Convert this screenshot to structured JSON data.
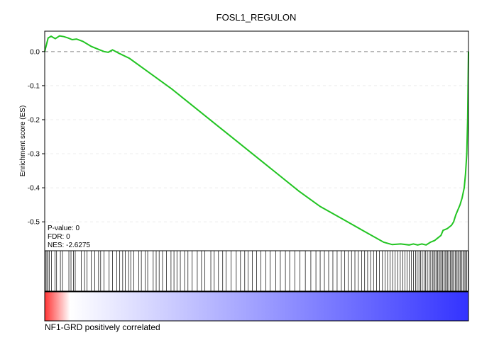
{
  "chart_data": {
    "type": "line",
    "title": "FOSL1_REGULON",
    "ylabel": "Enrichment score (ES)",
    "ylim": [
      -0.585,
      0.06
    ],
    "yticks": [
      0.0,
      -0.1,
      -0.2,
      -0.3,
      -0.4,
      -0.5
    ],
    "ytick_labels": [
      "0.0",
      "-0.1",
      "-0.2",
      "-0.3",
      "-0.4",
      "-0.5"
    ],
    "xlim": [
      0,
      1000
    ],
    "grid": true,
    "line_color": "#22c422",
    "zero_line": true,
    "series": [
      {
        "x": [
          0,
          3,
          8,
          15,
          25,
          35,
          45,
          55,
          65,
          75,
          90,
          110,
          130,
          140,
          150,
          160,
          175,
          200,
          250,
          300,
          350,
          400,
          450,
          500,
          550,
          600,
          650,
          700,
          750,
          800,
          820,
          840,
          860,
          870,
          880,
          890,
          900,
          910,
          920,
          925,
          930,
          935,
          940,
          950,
          960,
          965,
          970,
          975,
          980,
          985,
          990,
          993,
          996,
          998,
          1000
        ],
        "y": [
          0.0,
          0.015,
          0.04,
          0.045,
          0.038,
          0.046,
          0.044,
          0.04,
          0.035,
          0.037,
          0.03,
          0.015,
          0.005,
          0.0,
          -0.002,
          0.005,
          -0.005,
          -0.02,
          -0.065,
          -0.11,
          -0.16,
          -0.21,
          -0.26,
          -0.31,
          -0.36,
          -0.41,
          -0.455,
          -0.49,
          -0.525,
          -0.56,
          -0.567,
          -0.565,
          -0.568,
          -0.565,
          -0.568,
          -0.565,
          -0.568,
          -0.56,
          -0.555,
          -0.55,
          -0.545,
          -0.54,
          -0.525,
          -0.52,
          -0.51,
          -0.5,
          -0.48,
          -0.465,
          -0.45,
          -0.43,
          -0.4,
          -0.36,
          -0.3,
          -0.2,
          0.0
        ]
      }
    ],
    "stats": {
      "pvalue": "P-value: 0",
      "fdr": "FDR: 0",
      "nes": "NES: -2.6275"
    },
    "hits": [
      2,
      5,
      8,
      11,
      16,
      24,
      28,
      37,
      42,
      57,
      62,
      68,
      72,
      86,
      94,
      100,
      110,
      118,
      127,
      132,
      140,
      152,
      160,
      170,
      177,
      184,
      190,
      198,
      203,
      210,
      222,
      228,
      237,
      243,
      256,
      263,
      270,
      278,
      287,
      298,
      305,
      312,
      320,
      330,
      338,
      348,
      360,
      370,
      378,
      392,
      400,
      410,
      420,
      428,
      440,
      452,
      462,
      472,
      480,
      490,
      500,
      510,
      522,
      532,
      545,
      556,
      568,
      578,
      590,
      602,
      615,
      628,
      640,
      650,
      660,
      670,
      680,
      690,
      700,
      708,
      716,
      724,
      732,
      740,
      748,
      755,
      762,
      769,
      776,
      783,
      790,
      797,
      803,
      809,
      815,
      821,
      827,
      833,
      839,
      845,
      850,
      855,
      860,
      865,
      870,
      875,
      879,
      883,
      887,
      891,
      895,
      899,
      903,
      907,
      911,
      915,
      918,
      921,
      924,
      927,
      930,
      933,
      936,
      939,
      942,
      945,
      948,
      951,
      954,
      957,
      960,
      963,
      966,
      969,
      972,
      975,
      978,
      981,
      984,
      987,
      990,
      993,
      996,
      999
    ],
    "gradient": {
      "left_color": "#ff3333",
      "mid_color": "#ffffff",
      "right_color": "#3333ff"
    },
    "footer_label": "NF1-GRD positively correlated"
  }
}
